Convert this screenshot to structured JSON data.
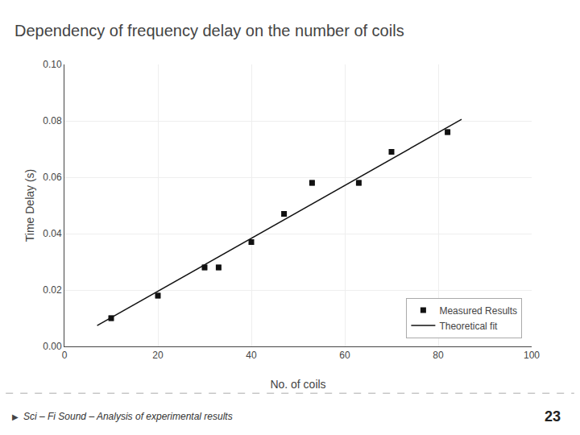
{
  "chart_data": {
    "type": "scatter",
    "title": "Dependency of frequency delay on the number of coils",
    "xlabel": "No. of coils",
    "ylabel": "Time Delay (s)",
    "series": [
      {
        "name": "Theoretical fit",
        "type": "line",
        "color": "#111111",
        "line_style": "solid",
        "x": [
          7,
          85
        ],
        "values": [
          0.007366,
          0.08053
        ]
      },
      {
        "name": "Measured Results",
        "type": "scatter",
        "color": "#111111",
        "marker": "square",
        "x": [
          10,
          20,
          30,
          33,
          40,
          47,
          53,
          63,
          70,
          82
        ],
        "values": [
          0.01,
          0.018,
          0.028,
          0.028,
          0.037,
          0.047,
          0.058,
          0.058,
          0.069,
          0.076
        ],
        "y_err": [
          0.0008,
          0.0008,
          0.0008,
          0.0008,
          0.0008,
          0.0008,
          0.0008,
          0.0008,
          0.0008,
          0.0008
        ]
      }
    ],
    "xlim": [
      0,
      100
    ],
    "ylim": [
      0.0,
      0.1
    ],
    "xticks": [
      0,
      20,
      40,
      60,
      80,
      100
    ],
    "yticks": [
      {
        "value": 0,
        "label": "0.00"
      },
      0.02,
      0.04,
      0.06,
      0.08,
      {
        "value": 0.1,
        "label": "0.10"
      }
    ],
    "grid": true,
    "legend": "lower right",
    "annotations": [
      {
        "text": "▶"
      },
      {
        "text": "Sci – Fi Sound – Analysis of experimental results"
      },
      {
        "text": "23"
      }
    ]
  }
}
